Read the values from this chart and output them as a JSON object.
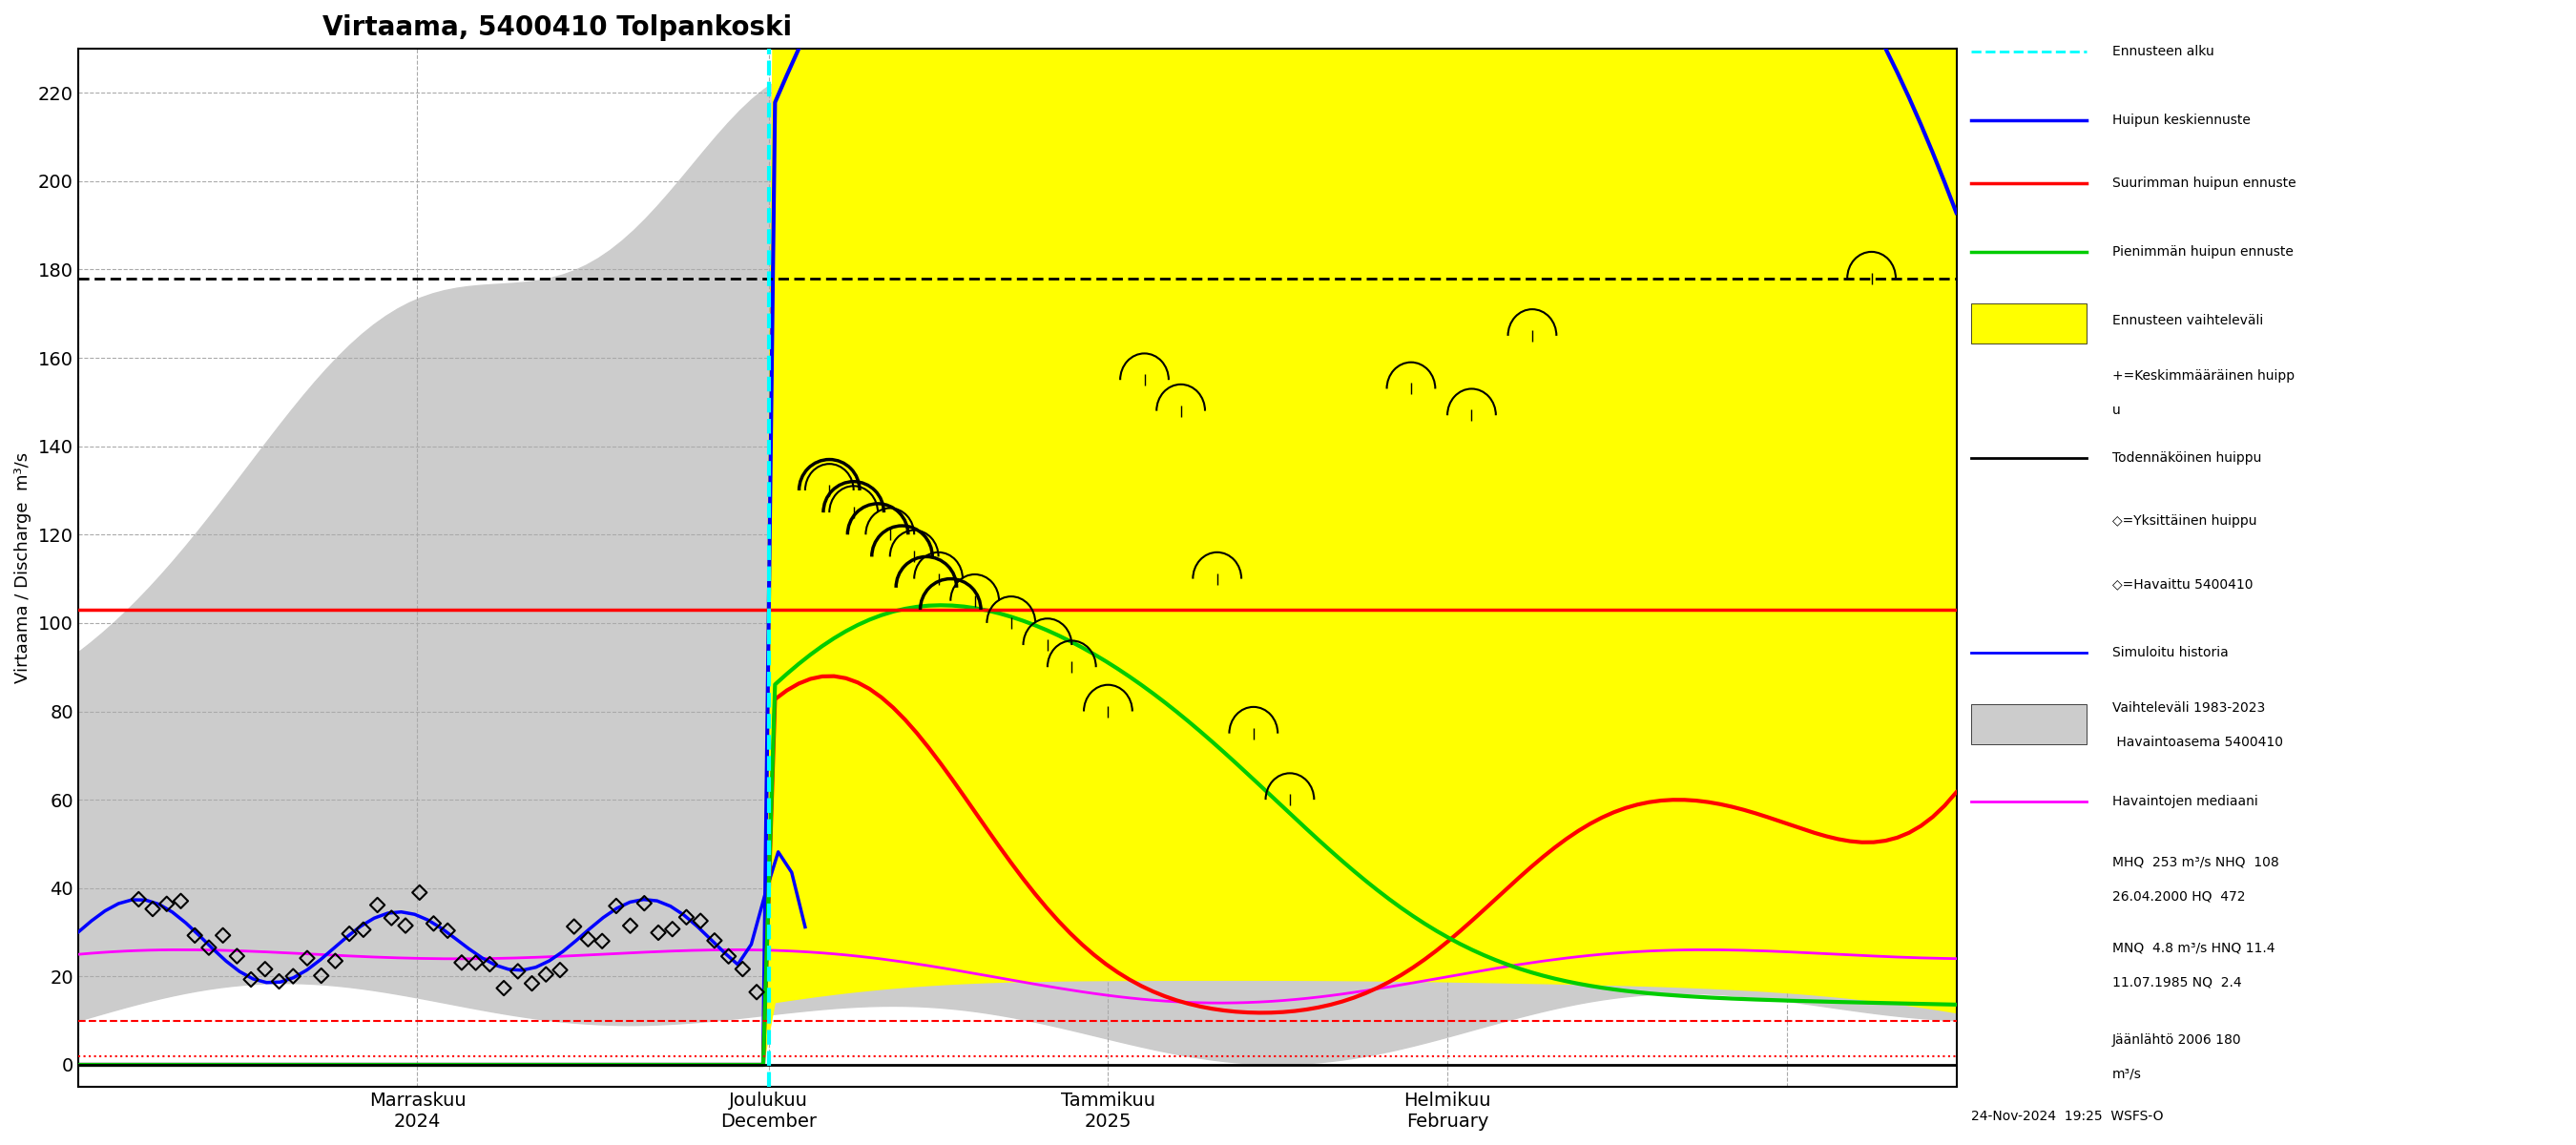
{
  "title": "Virtaama, 5400410 Tolpankoski",
  "ylabel": "Virtaama / Discharge  m³/s",
  "ylim": [
    -5,
    230
  ],
  "yticks": [
    0,
    20,
    40,
    60,
    80,
    100,
    120,
    140,
    160,
    180,
    200,
    220
  ],
  "hline_red_solid": 103,
  "hline_black_dotted": 178,
  "hline_red_dashed1": 10,
  "hline_red_dashed2": 2,
  "hline_black_solid_bottom": 0,
  "cyan_vline_x": 57,
  "forecast_start_x": 57,
  "background_color": "#ffffff",
  "grid_color": "#aaaaaa",
  "legend_entries": [
    "Ennusteen alku",
    "Huipun keskiennuste",
    "Suurimman huipun ennuste",
    "Pienimmän huipun ennuste",
    "Ennusteen vaihteleväli",
    "+=Keskimmääräinen huipp\nu",
    "Todennäköinen huippu",
    "◇=Yksittäinen huippu",
    "◇=Havaittu 5400410",
    "Simuloitu historia",
    "Vaihteleväli 1983-2023\n Havaintoasema 5400410",
    "Havaintojen mediaani",
    "MHQ  253 m³/s NHQ  108\n26.04.2000 HQ  472",
    "MNQ  4.8 m³/s HNQ 11.4\n11.07.1985 NQ  2.4",
    "Jäänlähtö 2006 180\nm³/s"
  ],
  "x_tick_positions": [
    0,
    28,
    57,
    85,
    113,
    141
  ],
  "x_tick_labels": [
    "",
    "Marraskuu\n2024",
    "Joulukuu\nDecember",
    "Tammikuu\n2025",
    "Helmikuu\nFebruary",
    ""
  ],
  "footnote": "24-Nov-2024  19:25  WSFS-O",
  "n_points": 160
}
